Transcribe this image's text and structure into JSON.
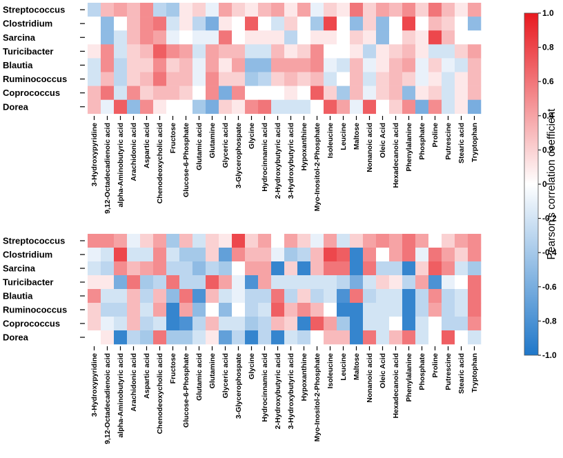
{
  "chart_data": [
    {
      "type": "heatmap",
      "title": "",
      "rows": [
        "Streptococcus",
        "Clostridium",
        "Sarcina",
        "Turicibacter",
        "Blautia",
        "Ruminococcus",
        "Coprococcus",
        "Dorea"
      ],
      "columns": [
        "3-Hydroxypyridine",
        "9,12-Octadecadienoic acid",
        "alpha-Aminobutyric acid",
        "Arachidonic acid",
        "Aspartic acid",
        "Chenodeoxycholic acid",
        "Fructose",
        "Glucose-6-Phosphate",
        "Glutamic acid",
        "Glutamine",
        "Glyceric acid",
        "3-Glycerophospate",
        "Glycine",
        "Hydrocinnamic acid",
        "2-Hydroxybutyric acid",
        "3-Hydroxybutyric acid",
        "Hypoxanthine",
        "Myo-Inositol-2-Phosphate",
        "Isoleucine",
        "Leucine",
        "Maltose",
        "Nonanoic acid",
        "Oleic Acid",
        "Hexadecanoic acid",
        "Phenylalanine",
        "Phosphate",
        "Proline",
        "Putrescine",
        "Stearic acid",
        "Tryptophan"
      ],
      "values": [
        [
          -0.3,
          0.3,
          0.4,
          0.3,
          0.5,
          -0.3,
          -0.4,
          0.1,
          0.2,
          -0.1,
          0.4,
          0.2,
          0.1,
          0.3,
          0.4,
          0.1,
          0.4,
          -0.1,
          0.2,
          0.1,
          0.6,
          0.2,
          0.4,
          0.3,
          0.5,
          0.2,
          0.6,
          0.3,
          0.1,
          0.4
        ],
        [
          0.0,
          -0.5,
          0.0,
          0.3,
          0.5,
          0.6,
          -0.2,
          0.1,
          -0.3,
          -0.6,
          0.1,
          0.0,
          0.7,
          0.0,
          -0.2,
          0.2,
          0.0,
          -0.4,
          0.8,
          0.0,
          -0.5,
          0.2,
          -0.5,
          0.0,
          0.8,
          0.0,
          0.3,
          0.2,
          0.0,
          -0.5
        ],
        [
          0.0,
          -0.5,
          -0.2,
          0.3,
          0.5,
          0.4,
          -0.1,
          0.0,
          -0.1,
          -0.1,
          0.6,
          0.0,
          0.1,
          0.1,
          0.1,
          -0.3,
          0.0,
          0.1,
          0.1,
          0.0,
          0.2,
          0.1,
          -0.5,
          0.0,
          0.2,
          0.1,
          0.8,
          0.3,
          0.0,
          0.0
        ],
        [
          0.1,
          0.5,
          -0.2,
          0.2,
          0.3,
          0.7,
          0.5,
          0.4,
          -0.2,
          0.4,
          0.3,
          0.3,
          -0.2,
          -0.2,
          0.3,
          0.1,
          0.2,
          0.5,
          0.0,
          0.0,
          0.1,
          -0.3,
          0.1,
          0.2,
          0.3,
          0.1,
          -0.2,
          -0.2,
          0.2,
          0.4
        ],
        [
          -0.2,
          0.5,
          -0.3,
          0.2,
          0.2,
          0.5,
          0.2,
          0.3,
          -0.1,
          0.4,
          0.1,
          0.4,
          -0.5,
          -0.5,
          0.4,
          0.4,
          0.4,
          0.5,
          -0.1,
          -0.2,
          0.3,
          -0.1,
          0.1,
          0.3,
          0.4,
          -0.1,
          0.2,
          -0.1,
          -0.2,
          0.3
        ],
        [
          -0.2,
          0.3,
          -0.3,
          0.2,
          0.3,
          0.6,
          0.3,
          0.3,
          -0.1,
          0.5,
          0.2,
          0.2,
          -0.4,
          -0.3,
          0.2,
          0.3,
          0.2,
          0.3,
          -0.2,
          0.0,
          0.3,
          -0.2,
          0.2,
          0.3,
          0.2,
          -0.1,
          0.1,
          -0.2,
          0.1,
          0.3
        ],
        [
          0.3,
          0.6,
          -0.2,
          0.5,
          0.2,
          0.3,
          0.3,
          0.2,
          0.0,
          0.5,
          -0.6,
          0.5,
          0.0,
          0.0,
          0.0,
          0.1,
          0.0,
          0.7,
          0.2,
          -0.4,
          0.3,
          -0.1,
          0.2,
          0.3,
          -0.5,
          0.1,
          0.2,
          -0.2,
          0.1,
          0.3
        ],
        [
          0.3,
          -0.1,
          0.7,
          -0.5,
          0.5,
          0.1,
          0.0,
          0.0,
          -0.4,
          -0.6,
          0.2,
          0.1,
          0.5,
          0.6,
          -0.2,
          -0.2,
          -0.2,
          0.0,
          0.7,
          0.4,
          -0.1,
          0.7,
          0.0,
          0.2,
          0.5,
          -0.6,
          0.5,
          -0.2,
          0.1,
          -0.6
        ]
      ],
      "colorbar": {
        "min": -1.0,
        "max": 1.0,
        "ticks": [
          "1.0",
          "0.8",
          "0.6",
          "0.4",
          "0.2",
          "0",
          "-0.2",
          "-0.4",
          "-0.6",
          "-0.8",
          "-1.0"
        ],
        "label": "Pearson's correlation coefficient",
        "low_color": "#1f77c9",
        "mid_color": "#ffffff",
        "high_color": "#e8191f"
      }
    },
    {
      "type": "heatmap",
      "title": "",
      "rows": [
        "Streptococcus",
        "Clostridium",
        "Sarcina",
        "Turicibacter",
        "Blautia",
        "Ruminococcus",
        "Coprococcus",
        "Dorea"
      ],
      "columns": [
        "3-Hydroxypyridine",
        "9,12-Octadecadienoic acid",
        "alpha-Aminobutyric acid",
        "Arachidonic acid",
        "Aspartic acid",
        "Chenodeoxycholic acid",
        "Fructose",
        "Glucose-6-Phosphate",
        "Glutamic acid",
        "Glutamine",
        "Glyceric acid",
        "3-Glycerophospate",
        "Glycine",
        "Hydrocinnamic acid",
        "2-Hydroxybutyric acid",
        "3-Hydroxybutyric acid",
        "Hypoxanthine",
        "Myo-Inositol-2-Phosphate",
        "Isoleucine",
        "Leucine",
        "Maltose",
        "Nonanoic acid",
        "Oleic Acid",
        "Hexadecanoic acid",
        "Phenylalanine",
        "Phosphate",
        "Proline",
        "Putrescine",
        "Stearic acid",
        "Tryptophan"
      ],
      "values": [
        [
          0.5,
          0.5,
          0.4,
          -0.1,
          0.2,
          0.4,
          -0.4,
          0.3,
          -0.2,
          0.2,
          0.1,
          0.8,
          0.2,
          0.4,
          0.0,
          0.4,
          0.2,
          -0.1,
          0.4,
          -0.2,
          0.2,
          0.4,
          0.5,
          0.4,
          0.6,
          0.4,
          0.0,
          0.2,
          0.4,
          0.5
        ],
        [
          -0.1,
          -0.2,
          0.8,
          -0.2,
          -0.2,
          0.5,
          -0.2,
          -0.4,
          -0.4,
          0.2,
          -0.7,
          0.5,
          0.3,
          0.3,
          -0.1,
          -0.4,
          -0.3,
          0.3,
          0.8,
          0.7,
          -0.9,
          0.5,
          0.0,
          0.4,
          0.6,
          -0.1,
          0.6,
          0.4,
          0.2,
          0.5
        ],
        [
          -0.2,
          -0.3,
          0.5,
          0.3,
          0.4,
          0.5,
          -0.3,
          -0.3,
          -0.5,
          -0.3,
          -0.4,
          0.0,
          0.4,
          0.4,
          -0.9,
          0.2,
          -0.9,
          0.3,
          0.6,
          0.6,
          -0.9,
          0.6,
          -0.3,
          -0.3,
          -0.9,
          0.2,
          0.7,
          0.5,
          -0.2,
          -0.4
        ],
        [
          0.1,
          0.1,
          -0.6,
          0.6,
          -0.4,
          -0.3,
          0.6,
          -0.3,
          -0.3,
          0.7,
          0.4,
          -0.1,
          -0.8,
          0.4,
          -0.2,
          -0.2,
          -0.2,
          -0.2,
          -0.2,
          -0.3,
          -0.6,
          -0.2,
          0.2,
          0.1,
          -0.3,
          0.4,
          -0.8,
          -0.1,
          0.0,
          0.6
        ],
        [
          0.5,
          -0.2,
          -0.2,
          0.3,
          -0.3,
          0.3,
          -0.5,
          0.6,
          -0.8,
          0.3,
          -0.2,
          -0.1,
          -0.3,
          -0.3,
          0.6,
          -0.3,
          0.2,
          -0.3,
          -0.2,
          -0.8,
          0.6,
          -0.3,
          -0.2,
          -0.2,
          -0.9,
          -0.3,
          0.5,
          -0.3,
          -0.2,
          0.6
        ],
        [
          0.2,
          -0.3,
          -0.3,
          0.3,
          -0.2,
          0.4,
          -0.9,
          0.4,
          -0.5,
          0.0,
          -0.5,
          0.0,
          -0.3,
          -0.2,
          0.7,
          0.3,
          0.5,
          0.3,
          0.0,
          -0.9,
          -0.9,
          -0.2,
          -0.2,
          -0.2,
          -0.9,
          -0.3,
          0.4,
          -0.3,
          -0.2,
          0.6
        ],
        [
          0.2,
          -0.1,
          -0.2,
          0.3,
          -0.3,
          -0.2,
          -0.9,
          -0.8,
          -0.3,
          0.3,
          -0.2,
          -0.2,
          -0.4,
          -0.3,
          0.3,
          0.2,
          -0.9,
          0.7,
          0.4,
          -0.4,
          -0.9,
          -0.2,
          -0.2,
          0.0,
          -0.9,
          -0.2,
          0.0,
          -0.3,
          -0.3,
          0.5
        ],
        [
          0.0,
          0.1,
          -0.9,
          -0.3,
          -0.4,
          0.6,
          -0.4,
          -0.4,
          -0.2,
          0.1,
          -0.7,
          -0.3,
          -0.9,
          -0.3,
          -0.9,
          -0.2,
          -0.3,
          0.0,
          0.3,
          0.3,
          -0.9,
          0.6,
          -0.2,
          0.3,
          0.6,
          -0.2,
          0.0,
          0.7,
          0.0,
          -0.2
        ]
      ]
    }
  ]
}
